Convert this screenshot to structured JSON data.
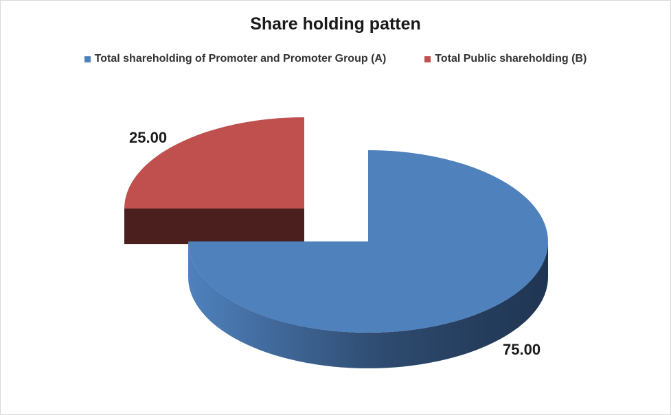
{
  "chart_data": {
    "type": "pie",
    "title": "Share holding patten",
    "slices": [
      {
        "name": "Total shareholding of Promoter and Promoter Group (A)",
        "value": 75.0,
        "label": "75.00",
        "color": "#4F81BD",
        "side_color": "#1F3552"
      },
      {
        "name": "Total Public shareholding (B)",
        "value": 25.0,
        "label": "25.00",
        "color": "#C0504D",
        "side_color": "#4A1F1E"
      }
    ],
    "legend_position": "top",
    "style": "3d-exploded"
  }
}
